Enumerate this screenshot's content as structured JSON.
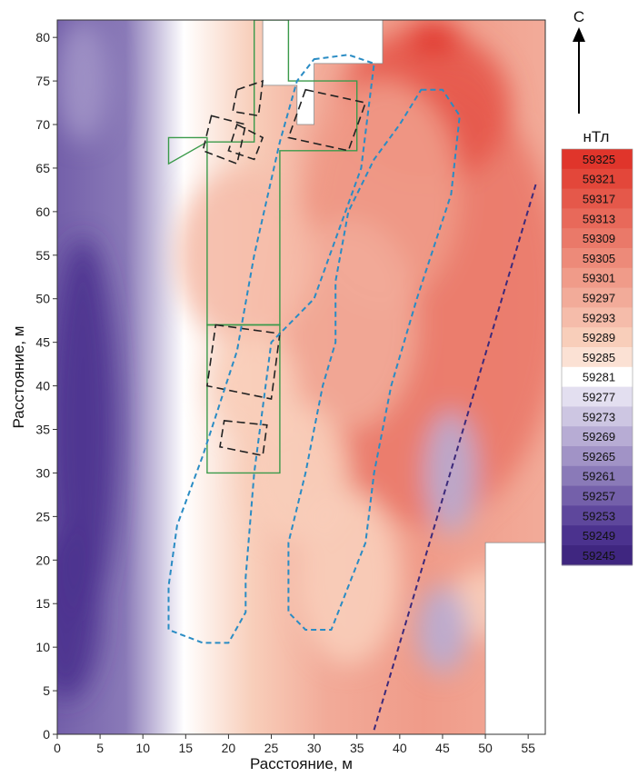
{
  "chart_data": {
    "type": "heatmap",
    "xlabel": "Расстояние, м",
    "ylabel": "Расстояние, м",
    "xlim": [
      0,
      57
    ],
    "ylim": [
      0,
      82
    ],
    "x_ticks": [
      0,
      5,
      10,
      15,
      20,
      25,
      30,
      35,
      40,
      45,
      50,
      55
    ],
    "y_ticks": [
      0,
      5,
      10,
      15,
      20,
      25,
      30,
      35,
      40,
      45,
      50,
      55,
      60,
      65,
      70,
      75,
      80
    ],
    "north_label": "С",
    "colorbar": {
      "title": "нТл",
      "levels": [
        59325,
        59321,
        59317,
        59313,
        59309,
        59305,
        59301,
        59297,
        59293,
        59289,
        59285,
        59281,
        59277,
        59273,
        59269,
        59265,
        59261,
        59257,
        59253,
        59249,
        59245
      ],
      "colors": [
        "#e0352b",
        "#e3473a",
        "#e5584a",
        "#e8695a",
        "#ea7969",
        "#ed8a79",
        "#f09b89",
        "#f2ab99",
        "#f5bcaa",
        "#f8ceba",
        "#fbe1d4",
        "#ffffff",
        "#e3dff0",
        "#cdc6e2",
        "#b7acd4",
        "#a193c6",
        "#8a7ab8",
        "#7460aa",
        "#5e479c",
        "#4b328e",
        "#3f2680"
      ]
    },
    "no_data_areas": [
      {
        "name": "north-gap",
        "polygon": [
          [
            6,
            82
          ],
          [
            24,
            82
          ],
          [
            24,
            74.5
          ],
          [
            28,
            74.5
          ],
          [
            28,
            70
          ],
          [
            30,
            70
          ],
          [
            30,
            77
          ],
          [
            38,
            77
          ],
          [
            38,
            82
          ]
        ]
      },
      {
        "name": "south-east-gap",
        "polygon": [
          [
            50,
            22
          ],
          [
            57,
            22
          ],
          [
            57,
            0
          ],
          [
            50,
            0
          ]
        ]
      }
    ],
    "green_outlines": [
      {
        "polygon": [
          [
            13,
            65.5
          ],
          [
            13,
            68.5
          ],
          [
            17.5,
            68.5
          ],
          [
            17.5,
            47
          ],
          [
            26,
            47
          ],
          [
            26,
            67
          ],
          [
            35,
            67
          ],
          [
            35,
            75
          ],
          [
            27,
            75
          ],
          [
            27,
            82
          ],
          [
            23,
            82
          ],
          [
            23,
            68
          ],
          [
            17.5,
            68
          ]
        ]
      },
      {
        "polygon": [
          [
            17.5,
            47
          ],
          [
            26,
            47
          ],
          [
            26,
            30
          ],
          [
            17.5,
            30
          ]
        ]
      }
    ],
    "dashed_squares": [
      {
        "polygon": [
          [
            21,
            74
          ],
          [
            24,
            75
          ],
          [
            23.5,
            71
          ],
          [
            20.5,
            71.5
          ]
        ]
      },
      {
        "polygon": [
          [
            18,
            71
          ],
          [
            22,
            70
          ],
          [
            21,
            65.5
          ],
          [
            17,
            67
          ]
        ]
      },
      {
        "polygon": [
          [
            21,
            70
          ],
          [
            24,
            68.5
          ],
          [
            23,
            66
          ],
          [
            20,
            67
          ]
        ]
      },
      {
        "polygon": [
          [
            29,
            74
          ],
          [
            36,
            72.5
          ],
          [
            34,
            67
          ],
          [
            27,
            68.5
          ]
        ]
      },
      {
        "polygon": [
          [
            18.5,
            47
          ],
          [
            26,
            46
          ],
          [
            25,
            38.5
          ],
          [
            17.5,
            40
          ]
        ]
      },
      {
        "polygon": [
          [
            19.5,
            36
          ],
          [
            24.5,
            35.5
          ],
          [
            24,
            32
          ],
          [
            19,
            33
          ]
        ]
      }
    ],
    "blue_dashed_loops": [
      {
        "points": [
          [
            30,
            77.5
          ],
          [
            34,
            78
          ],
          [
            37,
            77
          ],
          [
            35.5,
            65
          ],
          [
            30,
            50
          ],
          [
            25,
            45
          ],
          [
            23,
            30
          ],
          [
            22,
            18
          ],
          [
            22,
            14
          ],
          [
            20,
            10.5
          ],
          [
            17,
            10.5
          ],
          [
            13,
            12
          ],
          [
            13,
            17
          ],
          [
            14,
            24
          ],
          [
            17,
            32
          ],
          [
            21,
            44
          ],
          [
            23,
            55
          ],
          [
            26,
            68
          ],
          [
            28,
            75
          ],
          [
            30,
            77.5
          ]
        ]
      },
      {
        "points": [
          [
            42.5,
            74
          ],
          [
            45,
            74
          ],
          [
            47,
            71
          ],
          [
            46,
            62
          ],
          [
            42,
            50
          ],
          [
            39,
            40
          ],
          [
            37,
            30
          ],
          [
            36,
            22
          ],
          [
            32,
            12
          ],
          [
            29,
            12
          ],
          [
            27,
            14
          ],
          [
            27,
            22
          ],
          [
            29,
            30
          ],
          [
            30,
            35
          ],
          [
            31,
            40
          ],
          [
            32.5,
            45
          ],
          [
            32.5,
            52
          ],
          [
            34,
            60
          ],
          [
            37,
            66
          ],
          [
            40,
            70
          ],
          [
            42.5,
            74
          ]
        ]
      }
    ],
    "purple_dashed_line": {
      "points": [
        [
          37,
          0.5
        ],
        [
          56,
          63.5
        ]
      ]
    },
    "anomaly_blobs": [
      {
        "cx": 43,
        "cy": 50,
        "rx": 16,
        "ry": 26,
        "value": 59310
      },
      {
        "cx": 43,
        "cy": 72,
        "rx": 10,
        "ry": 9,
        "value": 59318
      },
      {
        "cx": 44,
        "cy": 80,
        "rx": 3,
        "ry": 2,
        "value": 59325
      },
      {
        "cx": 38,
        "cy": 62,
        "rx": 9,
        "ry": 13,
        "value": 59300
      },
      {
        "cx": 34,
        "cy": 47,
        "rx": 8,
        "ry": 12,
        "value": 59298
      },
      {
        "cx": 22,
        "cy": 55,
        "rx": 8,
        "ry": 10,
        "value": 59291
      },
      {
        "cx": 23,
        "cy": 40,
        "rx": 5,
        "ry": 6,
        "value": 59288
      },
      {
        "cx": 28,
        "cy": 30,
        "rx": 6,
        "ry": 8,
        "value": 59290
      },
      {
        "cx": 34,
        "cy": 18,
        "rx": 6,
        "ry": 10,
        "value": 59289
      },
      {
        "cx": 50,
        "cy": 15,
        "rx": 4,
        "ry": 4,
        "value": 59288
      },
      {
        "cx": 46,
        "cy": 30,
        "rx": 3,
        "ry": 7,
        "value": 59270
      },
      {
        "cx": 45,
        "cy": 12,
        "rx": 3,
        "ry": 5,
        "value": 59268
      },
      {
        "cx": 3,
        "cy": 35,
        "rx": 4,
        "ry": 22,
        "value": 59250
      },
      {
        "cx": 1,
        "cy": 14,
        "rx": 4,
        "ry": 10,
        "value": 59248
      },
      {
        "cx": 3,
        "cy": 75,
        "rx": 3,
        "ry": 7,
        "value": 59263
      }
    ]
  }
}
